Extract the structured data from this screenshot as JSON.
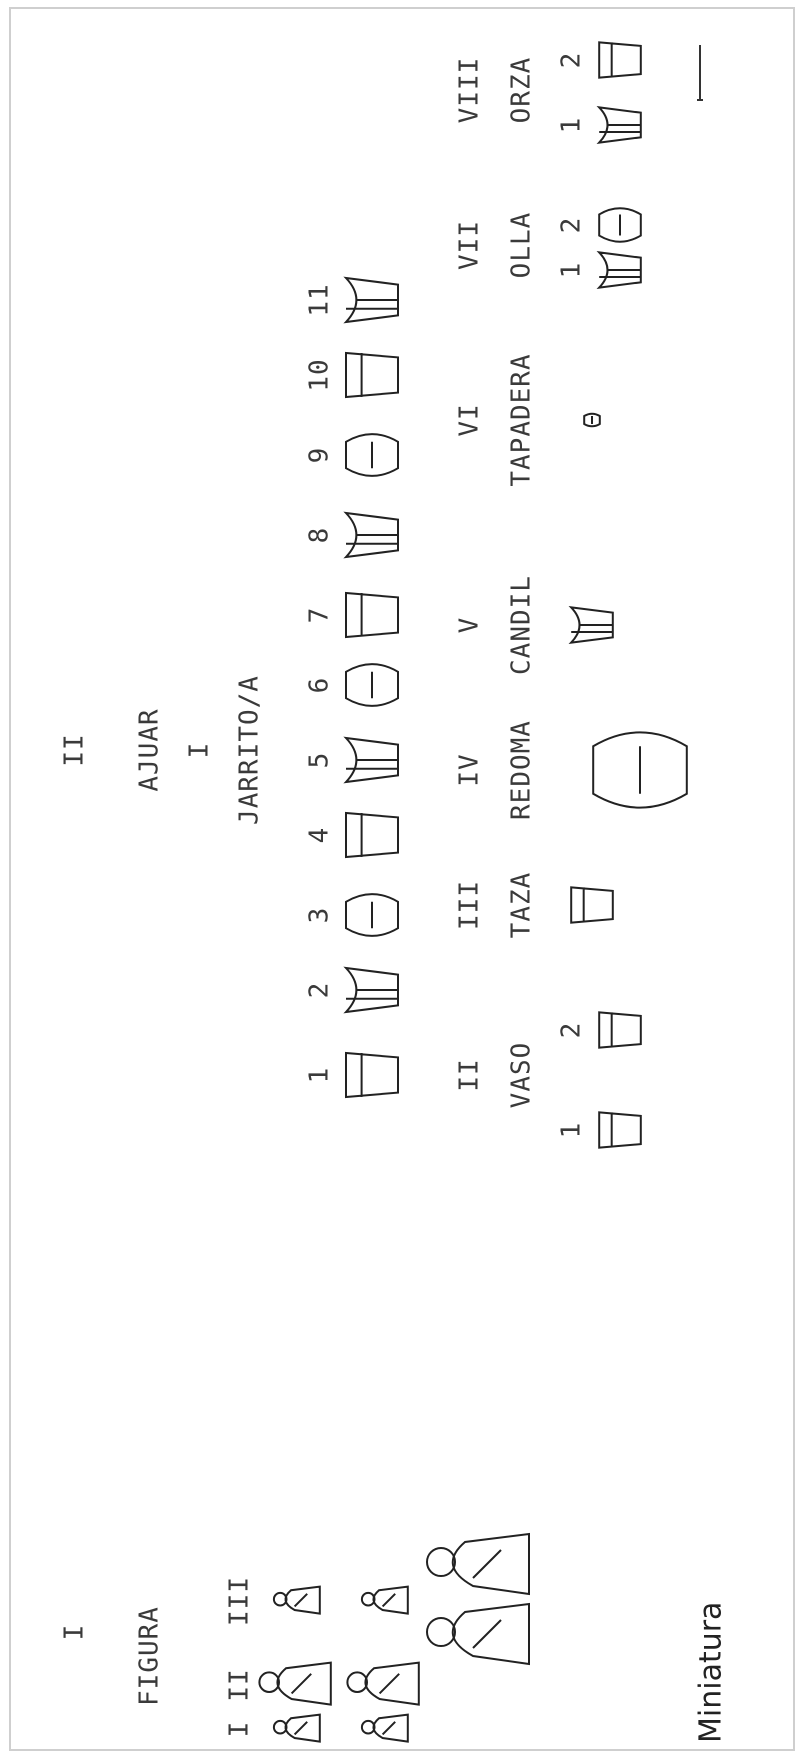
{
  "caption": "Miniatura",
  "figura": {
    "number": "I",
    "title": "FIGURA",
    "types": [
      "I",
      "II",
      "III"
    ]
  },
  "ajuar": {
    "number": "II",
    "title": "AJUAR",
    "groups": [
      {
        "number": "I",
        "title": "JARRITO/A",
        "variants": [
          "1",
          "2",
          "3",
          "4",
          "5",
          "6",
          "7",
          "8",
          "9",
          "10",
          "11"
        ]
      },
      {
        "number": "II",
        "title": "VASO",
        "variants": [
          "1",
          "2"
        ]
      },
      {
        "number": "III",
        "title": "TAZA"
      },
      {
        "number": "IV",
        "title": "REDOMA"
      },
      {
        "number": "V",
        "title": "CANDIL"
      },
      {
        "number": "VI",
        "title": "TAPADERA"
      },
      {
        "number": "VII",
        "title": "OLLA",
        "variants": [
          "1",
          "2"
        ]
      },
      {
        "number": "VIII",
        "title": "ORZA",
        "variants": [
          "1",
          "2"
        ]
      }
    ]
  }
}
